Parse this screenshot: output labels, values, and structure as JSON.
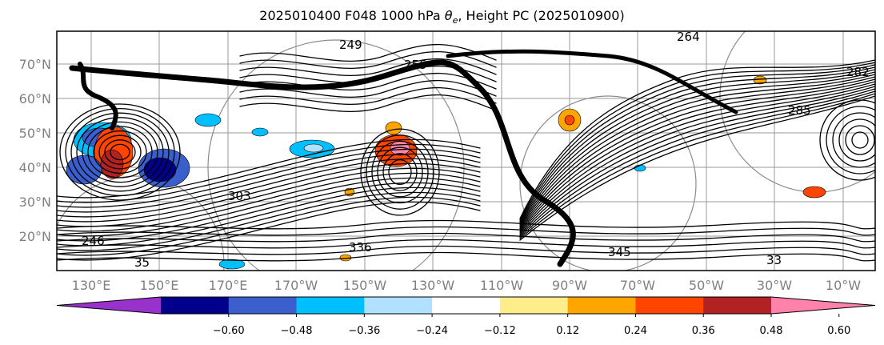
{
  "title": {
    "prefix": "2025010400 F048 1000 hPa ",
    "theta": "θ",
    "sub": "e",
    "suffix": ", Height PC (2025010900)"
  },
  "map": {
    "lat_labels": [
      "70°N",
      "60°N",
      "50°N",
      "40°N",
      "30°N",
      "20°N"
    ],
    "lon_labels": [
      "130°E",
      "150°E",
      "170°E",
      "170°W",
      "150°W",
      "130°W",
      "110°W",
      "90°W",
      "70°W",
      "50°W",
      "30°W",
      "10°W"
    ],
    "contour_labels": [
      "249",
      "264",
      "285",
      "303",
      "336",
      "345",
      "35",
      "246",
      "255",
      "282",
      "33"
    ]
  },
  "colorbar": {
    "tick_labels": [
      "−0.60",
      "−0.48",
      "−0.36",
      "−0.24",
      "−0.12",
      "0.12",
      "0.24",
      "0.36",
      "0.48",
      "0.60"
    ],
    "colors": [
      "#9932CC",
      "#00008B",
      "#3A5FCD",
      "#00BFFF",
      "#B0E2FF",
      "#FFFFFF",
      "#FFEC8B",
      "#FFA500",
      "#FF4500",
      "#B22222",
      "#FF82AB"
    ]
  }
}
